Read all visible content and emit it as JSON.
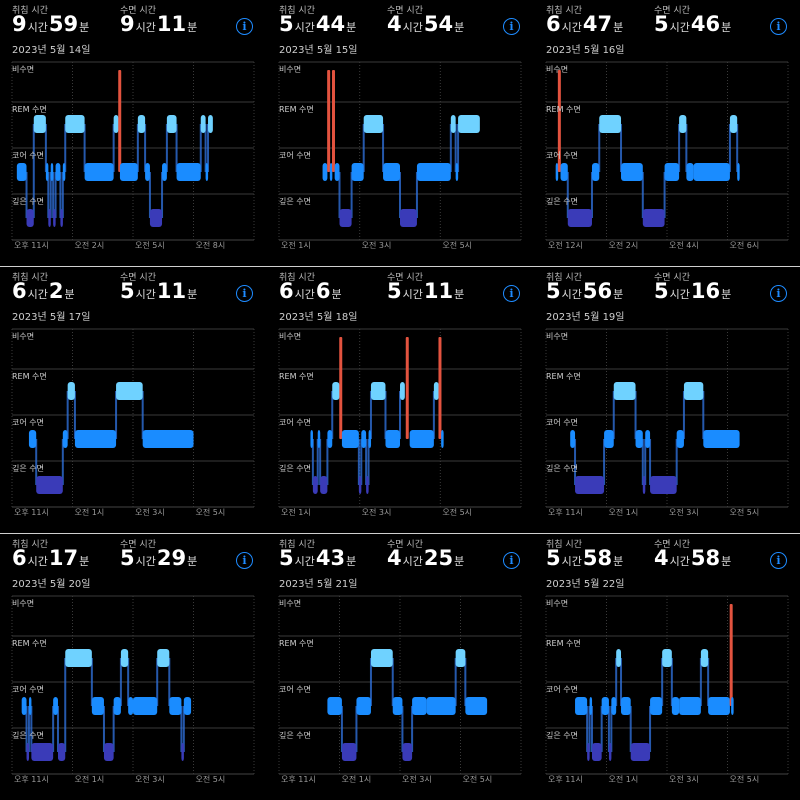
{
  "labels": {
    "in_bed": "취침 시간",
    "asleep": "수면 시간",
    "hour_unit": "시간",
    "min_unit": "분",
    "info_glyph": "i",
    "stages": [
      "비수면",
      "REM 수면",
      "코어 수면",
      "깊은 수면"
    ]
  },
  "colors": {
    "awake": "#e3533f",
    "rem": "#6fd2ff",
    "core": "#1a8cff",
    "deep": "#3a3bb8",
    "connector": "#2f6fd6",
    "info": "#1e8bff",
    "background": "#000000"
  },
  "panels": [
    {
      "in_bed": {
        "h": "9",
        "m": "59"
      },
      "asleep": {
        "h": "9",
        "m": "11"
      },
      "date": "2023년 5월 14일",
      "ticks": [
        "오후 11시",
        "오전 2시",
        "오전 5시",
        "오전 8시"
      ],
      "segments": [
        {
          "stage": "core",
          "start": 0.02,
          "end": 0.06
        },
        {
          "stage": "deep",
          "start": 0.06,
          "end": 0.09
        },
        {
          "stage": "rem",
          "start": 0.09,
          "end": 0.14
        },
        {
          "stage": "core",
          "start": 0.14,
          "end": 0.15
        },
        {
          "stage": "deep",
          "start": 0.15,
          "end": 0.16
        },
        {
          "stage": "core",
          "start": 0.16,
          "end": 0.17
        },
        {
          "stage": "deep",
          "start": 0.17,
          "end": 0.18
        },
        {
          "stage": "core",
          "start": 0.18,
          "end": 0.2
        },
        {
          "stage": "deep",
          "start": 0.2,
          "end": 0.21
        },
        {
          "stage": "core",
          "start": 0.21,
          "end": 0.22
        },
        {
          "stage": "rem",
          "start": 0.22,
          "end": 0.3
        },
        {
          "stage": "core",
          "start": 0.3,
          "end": 0.42
        },
        {
          "stage": "rem",
          "start": 0.42,
          "end": 0.44
        },
        {
          "stage": "awake",
          "start": 0.44,
          "end": 0.446
        },
        {
          "stage": "core",
          "start": 0.446,
          "end": 0.52
        },
        {
          "stage": "rem",
          "start": 0.52,
          "end": 0.55
        },
        {
          "stage": "core",
          "start": 0.55,
          "end": 0.57
        },
        {
          "stage": "deep",
          "start": 0.57,
          "end": 0.62
        },
        {
          "stage": "core",
          "start": 0.62,
          "end": 0.64
        },
        {
          "stage": "rem",
          "start": 0.64,
          "end": 0.68
        },
        {
          "stage": "core",
          "start": 0.68,
          "end": 0.78
        },
        {
          "stage": "rem",
          "start": 0.78,
          "end": 0.8
        },
        {
          "stage": "core",
          "start": 0.8,
          "end": 0.81
        },
        {
          "stage": "rem",
          "start": 0.81,
          "end": 0.83
        }
      ]
    },
    {
      "in_bed": {
        "h": "5",
        "m": "44"
      },
      "asleep": {
        "h": "4",
        "m": "54"
      },
      "date": "2023년 5월 15일",
      "ticks": [
        "오전 1시",
        "오전 3시",
        "오전 5시"
      ],
      "segments": [
        {
          "stage": "core",
          "start": 0.18,
          "end": 0.2
        },
        {
          "stage": "awake",
          "start": 0.2,
          "end": 0.21
        },
        {
          "stage": "core",
          "start": 0.21,
          "end": 0.22
        },
        {
          "stage": "awake",
          "start": 0.22,
          "end": 0.23
        },
        {
          "stage": "core",
          "start": 0.23,
          "end": 0.25
        },
        {
          "stage": "deep",
          "start": 0.25,
          "end": 0.3
        },
        {
          "stage": "core",
          "start": 0.3,
          "end": 0.35
        },
        {
          "stage": "rem",
          "start": 0.35,
          "end": 0.43
        },
        {
          "stage": "core",
          "start": 0.43,
          "end": 0.5
        },
        {
          "stage": "deep",
          "start": 0.5,
          "end": 0.57
        },
        {
          "stage": "core",
          "start": 0.57,
          "end": 0.71
        },
        {
          "stage": "rem",
          "start": 0.71,
          "end": 0.73
        },
        {
          "stage": "core",
          "start": 0.73,
          "end": 0.74
        },
        {
          "stage": "rem",
          "start": 0.74,
          "end": 0.83
        }
      ]
    },
    {
      "in_bed": {
        "h": "6",
        "m": "47"
      },
      "asleep": {
        "h": "5",
        "m": "46"
      },
      "date": "2023년 5월 16일",
      "ticks": [
        "오전 12시",
        "오전 2시",
        "오전 4시",
        "오전 6시"
      ],
      "segments": [
        {
          "stage": "core",
          "start": 0.04,
          "end": 0.05
        },
        {
          "stage": "awake",
          "start": 0.05,
          "end": 0.06
        },
        {
          "stage": "core",
          "start": 0.06,
          "end": 0.09
        },
        {
          "stage": "deep",
          "start": 0.09,
          "end": 0.19
        },
        {
          "stage": "core",
          "start": 0.19,
          "end": 0.22
        },
        {
          "stage": "rem",
          "start": 0.22,
          "end": 0.31
        },
        {
          "stage": "core",
          "start": 0.31,
          "end": 0.4
        },
        {
          "stage": "deep",
          "start": 0.4,
          "end": 0.49
        },
        {
          "stage": "core",
          "start": 0.49,
          "end": 0.55
        },
        {
          "stage": "rem",
          "start": 0.55,
          "end": 0.58
        },
        {
          "stage": "core",
          "start": 0.58,
          "end": 0.61
        },
        {
          "stage": "core",
          "start": 0.61,
          "end": 0.76
        },
        {
          "stage": "rem",
          "start": 0.76,
          "end": 0.79
        },
        {
          "stage": "core",
          "start": 0.79,
          "end": 0.8
        }
      ]
    },
    {
      "in_bed": {
        "h": "6",
        "m": "2"
      },
      "asleep": {
        "h": "5",
        "m": "11"
      },
      "date": "2023년 5월 17일",
      "ticks": [
        "오후 11시",
        "오전 1시",
        "오전 3시",
        "오전 5시"
      ],
      "segments": [
        {
          "stage": "core",
          "start": 0.07,
          "end": 0.1
        },
        {
          "stage": "deep",
          "start": 0.1,
          "end": 0.21
        },
        {
          "stage": "core",
          "start": 0.21,
          "end": 0.23
        },
        {
          "stage": "rem",
          "start": 0.23,
          "end": 0.26
        },
        {
          "stage": "core",
          "start": 0.26,
          "end": 0.43
        },
        {
          "stage": "rem",
          "start": 0.43,
          "end": 0.54
        },
        {
          "stage": "core",
          "start": 0.54,
          "end": 0.75
        }
      ]
    },
    {
      "in_bed": {
        "h": "6",
        "m": "6"
      },
      "asleep": {
        "h": "5",
        "m": "11"
      },
      "date": "2023년 5월 18일",
      "ticks": [
        "오전 1시",
        "오전 3시",
        "오전 5시"
      ],
      "segments": [
        {
          "stage": "core",
          "start": 0.13,
          "end": 0.14
        },
        {
          "stage": "deep",
          "start": 0.14,
          "end": 0.16
        },
        {
          "stage": "core",
          "start": 0.16,
          "end": 0.17
        },
        {
          "stage": "deep",
          "start": 0.17,
          "end": 0.2
        },
        {
          "stage": "core",
          "start": 0.2,
          "end": 0.22
        },
        {
          "stage": "rem",
          "start": 0.22,
          "end": 0.25
        },
        {
          "stage": "awake",
          "start": 0.25,
          "end": 0.26
        },
        {
          "stage": "core",
          "start": 0.26,
          "end": 0.33
        },
        {
          "stage": "deep",
          "start": 0.33,
          "end": 0.34
        },
        {
          "stage": "core",
          "start": 0.34,
          "end": 0.36
        },
        {
          "stage": "deep",
          "start": 0.36,
          "end": 0.37
        },
        {
          "stage": "core",
          "start": 0.37,
          "end": 0.38
        },
        {
          "stage": "rem",
          "start": 0.38,
          "end": 0.44
        },
        {
          "stage": "core",
          "start": 0.44,
          "end": 0.5
        },
        {
          "stage": "rem",
          "start": 0.5,
          "end": 0.52
        },
        {
          "stage": "awake",
          "start": 0.52,
          "end": 0.54
        },
        {
          "stage": "core",
          "start": 0.54,
          "end": 0.64
        },
        {
          "stage": "rem",
          "start": 0.64,
          "end": 0.66
        },
        {
          "stage": "awake",
          "start": 0.66,
          "end": 0.67
        },
        {
          "stage": "core",
          "start": 0.67,
          "end": 0.68
        }
      ]
    },
    {
      "in_bed": {
        "h": "5",
        "m": "56"
      },
      "asleep": {
        "h": "5",
        "m": "16"
      },
      "date": "2023년 5월 19일",
      "ticks": [
        "오후 11시",
        "오전 1시",
        "오전 3시",
        "오전 5시"
      ],
      "segments": [
        {
          "stage": "core",
          "start": 0.1,
          "end": 0.12
        },
        {
          "stage": "deep",
          "start": 0.12,
          "end": 0.24
        },
        {
          "stage": "core",
          "start": 0.24,
          "end": 0.28
        },
        {
          "stage": "rem",
          "start": 0.28,
          "end": 0.37
        },
        {
          "stage": "core",
          "start": 0.37,
          "end": 0.4
        },
        {
          "stage": "deep",
          "start": 0.4,
          "end": 0.41
        },
        {
          "stage": "core",
          "start": 0.41,
          "end": 0.43
        },
        {
          "stage": "deep",
          "start": 0.43,
          "end": 0.54
        },
        {
          "stage": "core",
          "start": 0.54,
          "end": 0.57
        },
        {
          "stage": "rem",
          "start": 0.57,
          "end": 0.65
        },
        {
          "stage": "core",
          "start": 0.65,
          "end": 0.8
        }
      ]
    },
    {
      "in_bed": {
        "h": "6",
        "m": "17"
      },
      "asleep": {
        "h": "5",
        "m": "29"
      },
      "date": "2023년 5월 20일",
      "ticks": [
        "오후 11시",
        "오전 1시",
        "오전 3시",
        "오전 5시"
      ],
      "segments": [
        {
          "stage": "core",
          "start": 0.04,
          "end": 0.06
        },
        {
          "stage": "deep",
          "start": 0.06,
          "end": 0.07
        },
        {
          "stage": "core",
          "start": 0.07,
          "end": 0.08
        },
        {
          "stage": "deep",
          "start": 0.08,
          "end": 0.17
        },
        {
          "stage": "core",
          "start": 0.17,
          "end": 0.19
        },
        {
          "stage": "deep",
          "start": 0.19,
          "end": 0.22
        },
        {
          "stage": "rem",
          "start": 0.22,
          "end": 0.33
        },
        {
          "stage": "core",
          "start": 0.33,
          "end": 0.38
        },
        {
          "stage": "deep",
          "start": 0.38,
          "end": 0.42
        },
        {
          "stage": "core",
          "start": 0.42,
          "end": 0.45
        },
        {
          "stage": "rem",
          "start": 0.45,
          "end": 0.48
        },
        {
          "stage": "core",
          "start": 0.48,
          "end": 0.5
        },
        {
          "stage": "core",
          "start": 0.5,
          "end": 0.6
        },
        {
          "stage": "rem",
          "start": 0.6,
          "end": 0.65
        },
        {
          "stage": "core",
          "start": 0.65,
          "end": 0.7
        },
        {
          "stage": "deep",
          "start": 0.7,
          "end": 0.71
        },
        {
          "stage": "core",
          "start": 0.71,
          "end": 0.74
        }
      ]
    },
    {
      "in_bed": {
        "h": "5",
        "m": "43"
      },
      "asleep": {
        "h": "4",
        "m": "25"
      },
      "date": "2023년 5월 21일",
      "ticks": [
        "오후 11시",
        "오전 1시",
        "오전 3시",
        "오전 5시"
      ],
      "segments": [
        {
          "stage": "core",
          "start": 0.2,
          "end": 0.26
        },
        {
          "stage": "deep",
          "start": 0.26,
          "end": 0.32
        },
        {
          "stage": "core",
          "start": 0.32,
          "end": 0.38
        },
        {
          "stage": "rem",
          "start": 0.38,
          "end": 0.47
        },
        {
          "stage": "core",
          "start": 0.47,
          "end": 0.51
        },
        {
          "stage": "deep",
          "start": 0.51,
          "end": 0.55
        },
        {
          "stage": "core",
          "start": 0.55,
          "end": 0.61
        },
        {
          "stage": "core",
          "start": 0.61,
          "end": 0.73
        },
        {
          "stage": "rem",
          "start": 0.73,
          "end": 0.77
        },
        {
          "stage": "core",
          "start": 0.77,
          "end": 0.86
        }
      ]
    },
    {
      "in_bed": {
        "h": "5",
        "m": "58"
      },
      "asleep": {
        "h": "4",
        "m": "58"
      },
      "date": "2023년 5월 22일",
      "ticks": [
        "오후 11시",
        "오전 1시",
        "오전 3시",
        "오전 5시"
      ],
      "segments": [
        {
          "stage": "core",
          "start": 0.12,
          "end": 0.17
        },
        {
          "stage": "deep",
          "start": 0.17,
          "end": 0.18
        },
        {
          "stage": "core",
          "start": 0.18,
          "end": 0.19
        },
        {
          "stage": "deep",
          "start": 0.19,
          "end": 0.23
        },
        {
          "stage": "core",
          "start": 0.23,
          "end": 0.26
        },
        {
          "stage": "deep",
          "start": 0.26,
          "end": 0.27
        },
        {
          "stage": "core",
          "start": 0.27,
          "end": 0.29
        },
        {
          "stage": "rem",
          "start": 0.29,
          "end": 0.31
        },
        {
          "stage": "core",
          "start": 0.31,
          "end": 0.35
        },
        {
          "stage": "deep",
          "start": 0.35,
          "end": 0.43
        },
        {
          "stage": "core",
          "start": 0.43,
          "end": 0.48
        },
        {
          "stage": "rem",
          "start": 0.48,
          "end": 0.52
        },
        {
          "stage": "core",
          "start": 0.52,
          "end": 0.55
        },
        {
          "stage": "core",
          "start": 0.55,
          "end": 0.64
        },
        {
          "stage": "rem",
          "start": 0.64,
          "end": 0.67
        },
        {
          "stage": "core",
          "start": 0.67,
          "end": 0.76
        },
        {
          "stage": "awake",
          "start": 0.76,
          "end": 0.765
        },
        {
          "stage": "core",
          "start": 0.765,
          "end": 0.77
        }
      ]
    }
  ]
}
